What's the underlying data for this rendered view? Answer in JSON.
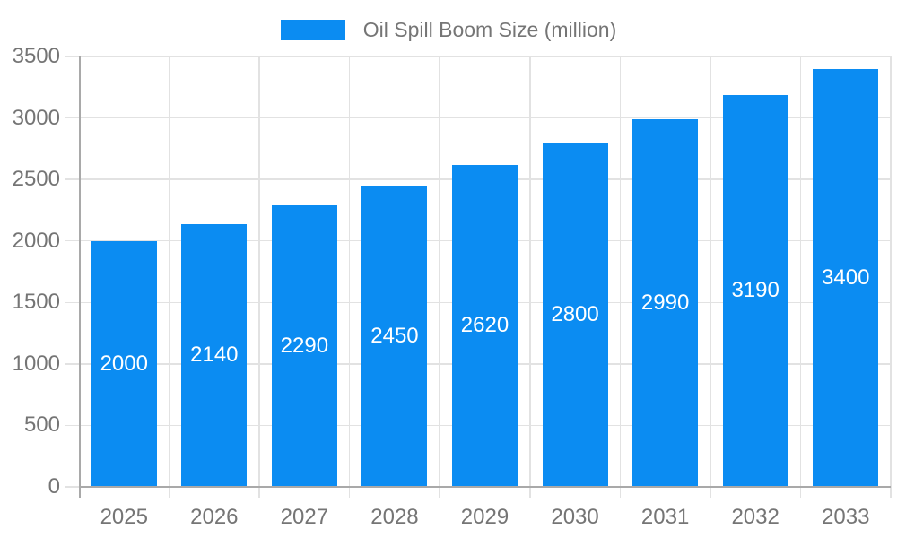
{
  "chart_data": {
    "type": "bar",
    "title": "Oil Spill Boom Size (million)",
    "categories": [
      "2025",
      "2026",
      "2027",
      "2028",
      "2029",
      "2030",
      "2031",
      "2032",
      "2033"
    ],
    "values": [
      2000,
      2140,
      2290,
      2450,
      2620,
      2800,
      2990,
      3190,
      3400
    ],
    "xlabel": "",
    "ylabel": "",
    "ylim": [
      0,
      3500
    ],
    "ytick_step": 500,
    "yticks": [
      0,
      500,
      1000,
      1500,
      2000,
      2500,
      3000,
      3500
    ],
    "grid": true,
    "legend_position": "top-center",
    "value_labels": "inside-bar-centered",
    "colors": {
      "bar": "#0b8cf2",
      "value_label": "#ffffff",
      "axis_text": "#757575",
      "gridline": "#e2e2e2",
      "axis_line": "#a9a9a9",
      "background": "#ffffff"
    }
  }
}
